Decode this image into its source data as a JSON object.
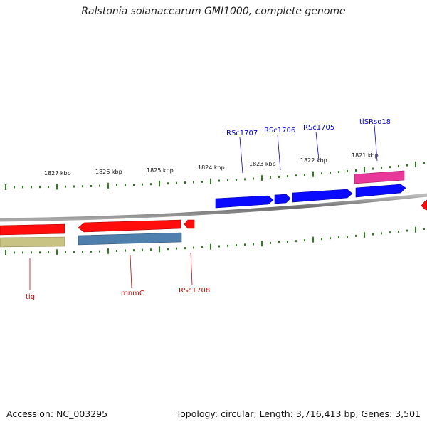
{
  "title": "Ralstonia solanacearum GMI1000, complete genome",
  "footer": {
    "accession": "Accession: NC_003295",
    "summary": "Topology: circular; Length: 3,716,413 bp; Genes: 3,501"
  },
  "ruler": {
    "labels": [
      "1827 kbp",
      "1826 kbp",
      "1825 kbp",
      "1824 kbp",
      "1823 kbp",
      "1822 kbp",
      "1821 kbp"
    ]
  },
  "genes": {
    "forward": [
      "RSc1707",
      "RSc1706",
      "RSc1705",
      "tlSRso18"
    ],
    "reverse": [
      "tig",
      "mnmC",
      "RSc1708"
    ]
  },
  "colors": {
    "backbone": "#8a8a8a",
    "tick": "#2a7f1a",
    "forward_gene": "#0a0aff",
    "forward_label": "#0000cc",
    "reverse_gene": "#ff0d0d",
    "reverse_label": "#cc0000",
    "trna": "#e8399a",
    "cds_olive": "#c8c283",
    "cds_steel": "#4e7fad"
  }
}
